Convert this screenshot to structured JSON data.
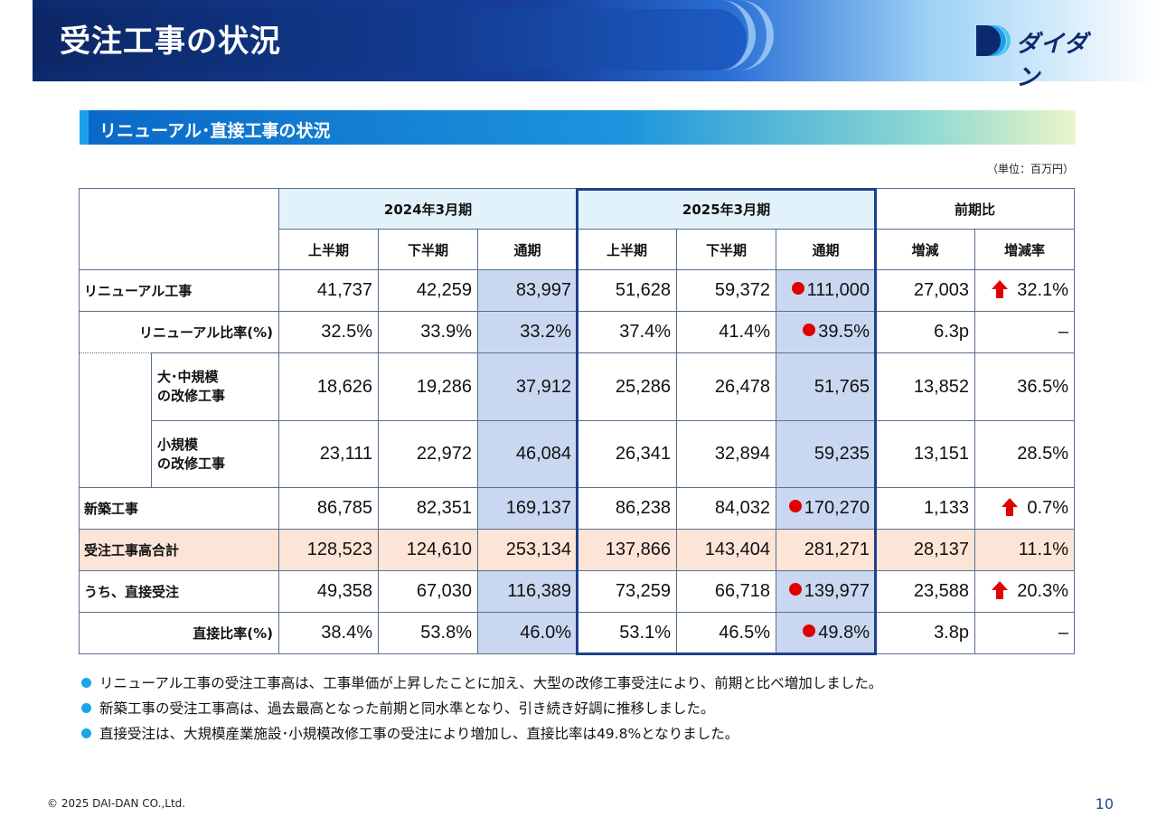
{
  "header": {
    "title": "受注工事の状況",
    "logo_text": "ダイダン"
  },
  "section": {
    "title": "リニューアル･直接工事の状況"
  },
  "unit": "（単位：百万円）",
  "table": {
    "groups": {
      "fy2024": "2024年3月期",
      "fy2025": "2025年3月期",
      "yoy": "前期比"
    },
    "subheaders": {
      "h1": "上半期",
      "h2": "下半期",
      "full": "通期",
      "diff": "増減",
      "rate": "増減率"
    },
    "rows": {
      "renewal": {
        "label": "リニューアル工事",
        "v": [
          "41,737",
          "42,259",
          "83,997",
          "51,628",
          "59,372",
          "111,000",
          "27,003",
          "32.1%"
        ]
      },
      "renewal_ratio": {
        "label": "リニューアル比率(%)",
        "v": [
          "32.5%",
          "33.9%",
          "33.2%",
          "37.4%",
          "41.4%",
          "39.5%",
          "6.3p",
          "–"
        ]
      },
      "large": {
        "label1": "大･中規模",
        "label2": "の改修工事",
        "v": [
          "18,626",
          "19,286",
          "37,912",
          "25,286",
          "26,478",
          "51,765",
          "13,852",
          "36.5%"
        ]
      },
      "small": {
        "label1": "小規模",
        "label2": "の改修工事",
        "v": [
          "23,111",
          "22,972",
          "46,084",
          "26,341",
          "32,894",
          "59,235",
          "13,151",
          "28.5%"
        ]
      },
      "new": {
        "label": "新築工事",
        "v": [
          "86,785",
          "82,351",
          "169,137",
          "86,238",
          "84,032",
          "170,270",
          "1,133",
          "0.7%"
        ]
      },
      "total": {
        "label": "受注工事高合計",
        "v": [
          "128,523",
          "124,610",
          "253,134",
          "137,866",
          "143,404",
          "281,271",
          "28,137",
          "11.1%"
        ]
      },
      "direct": {
        "label": "うち、直接受注",
        "v": [
          "49,358",
          "67,030",
          "116,389",
          "73,259",
          "66,718",
          "139,977",
          "23,588",
          "20.3%"
        ]
      },
      "direct_ratio": {
        "label": "直接比率(%)",
        "v": [
          "38.4%",
          "53.8%",
          "46.0%",
          "53.1%",
          "46.5%",
          "49.8%",
          "3.8p",
          "–"
        ]
      }
    }
  },
  "notes": [
    "リニューアル工事の受注工事高は、工事単価が上昇したことに加え、大型の改修工事受注により、前期と比べ増加しました。",
    "新築工事の受注工事高は、過去最高となった前期と同水準となり、引き続き好調に推移しました。",
    "直接受注は、大規模産業施設･小規模改修工事の受注により増加し、直接比率は49.8%となりました。"
  ],
  "footer": {
    "copyright": "© 2025 DAI-DAN CO.,Ltd.",
    "page": "10"
  },
  "colors": {
    "navy": "#0e2a6e",
    "shade": "#c9d8f0",
    "total_row": "#fce4d6",
    "red": "#e00000",
    "bullet": "#18a6e6"
  }
}
